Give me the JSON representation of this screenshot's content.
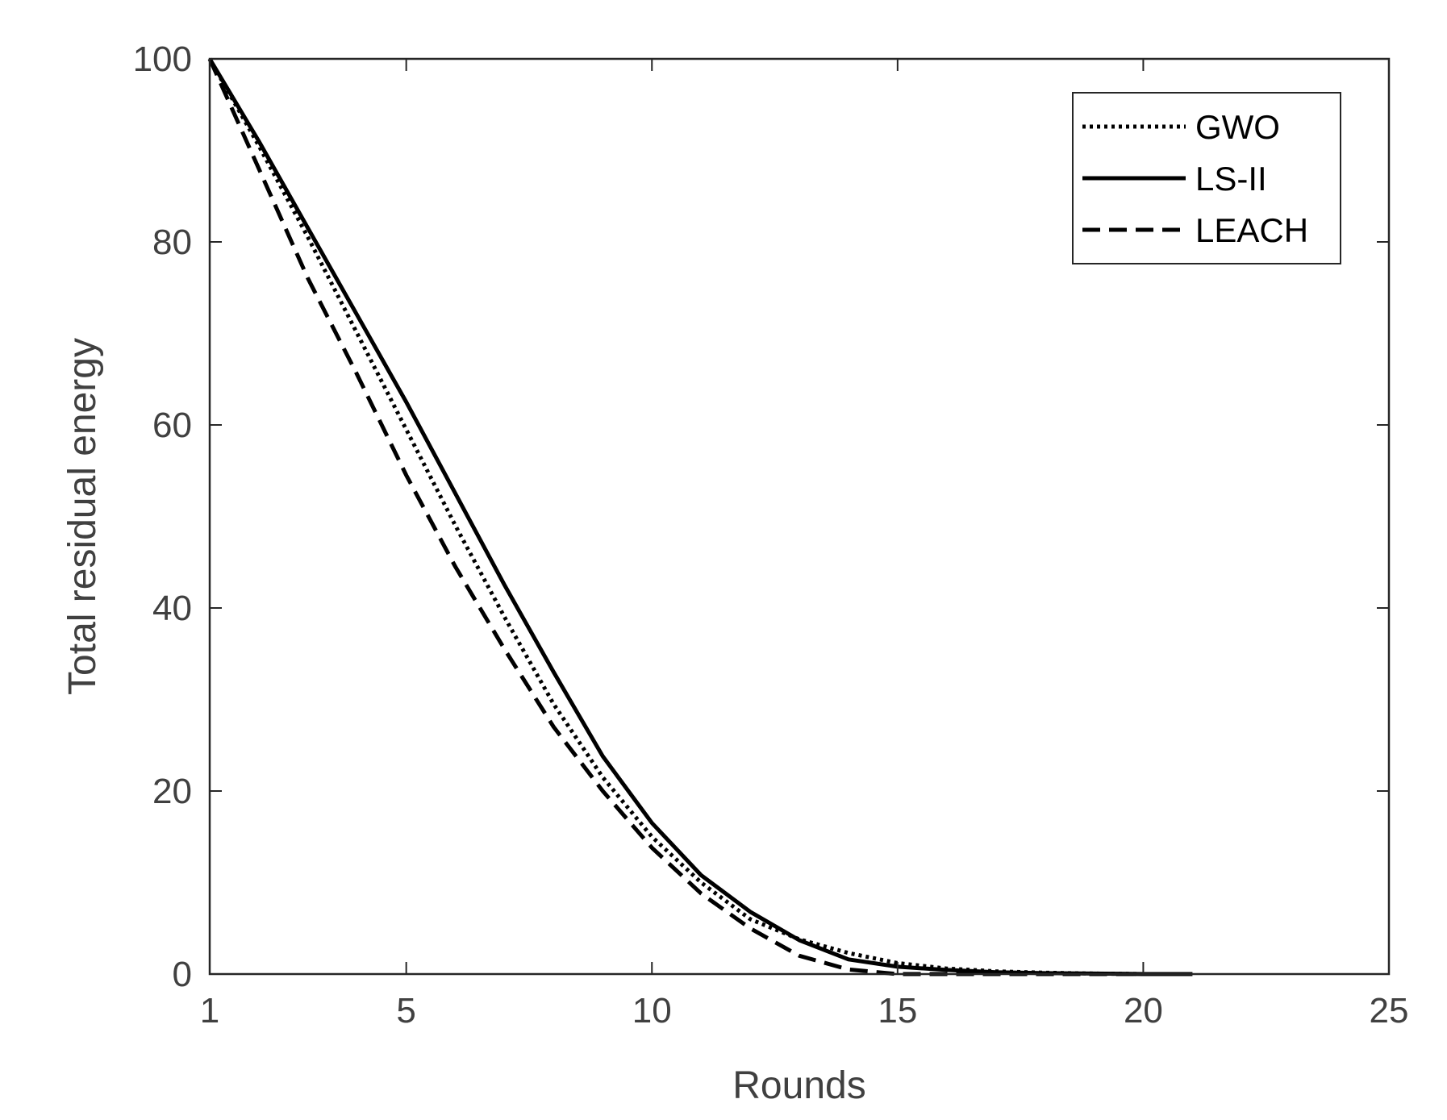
{
  "chart_data": {
    "type": "line",
    "xlabel": "Rounds",
    "ylabel": "Total residual energy",
    "xlim": [
      1,
      25
    ],
    "ylim": [
      0,
      100
    ],
    "xticks": [
      1,
      5,
      10,
      15,
      20,
      25
    ],
    "yticks": [
      0,
      20,
      40,
      60,
      80,
      100
    ],
    "grid": false,
    "legend_position": "top-right",
    "series": [
      {
        "name": "GWO",
        "style": "dotted",
        "color": "#000000",
        "x": [
          1,
          2,
          3,
          4,
          5,
          6,
          7,
          8,
          9,
          10,
          11,
          12,
          13,
          14,
          15,
          16,
          17,
          18,
          19,
          20,
          21
        ],
        "y": [
          100,
          90.5,
          80.5,
          70,
          59.5,
          49,
          39,
          29.5,
          21.5,
          15,
          10,
          6,
          3.8,
          2.3,
          1.2,
          0.6,
          0.3,
          0.15,
          0.05,
          0,
          0
        ]
      },
      {
        "name": "LS-II",
        "style": "solid",
        "color": "#000000",
        "x": [
          1,
          2,
          3,
          4,
          5,
          6,
          7,
          8,
          9,
          10,
          11,
          12,
          13,
          14,
          15,
          16,
          17,
          18,
          19,
          20,
          21
        ],
        "y": [
          100,
          91,
          81.5,
          72,
          62.5,
          52.5,
          42.5,
          33,
          23.8,
          16.5,
          10.8,
          6.8,
          3.7,
          1.6,
          0.8,
          0.45,
          0.2,
          0.1,
          0.05,
          0,
          0
        ]
      },
      {
        "name": "LEACH",
        "style": "dashed",
        "color": "#000000",
        "x": [
          1,
          2,
          3,
          4,
          5,
          6,
          7,
          8,
          9,
          10,
          11,
          12,
          13,
          14,
          15,
          16,
          17,
          18,
          19,
          20,
          21
        ],
        "y": [
          100,
          88,
          76,
          65.5,
          54.5,
          44.5,
          35.5,
          27,
          20,
          13.8,
          8.8,
          5,
          2,
          0.5,
          0,
          0,
          0,
          0,
          0,
          0,
          0
        ]
      }
    ]
  }
}
